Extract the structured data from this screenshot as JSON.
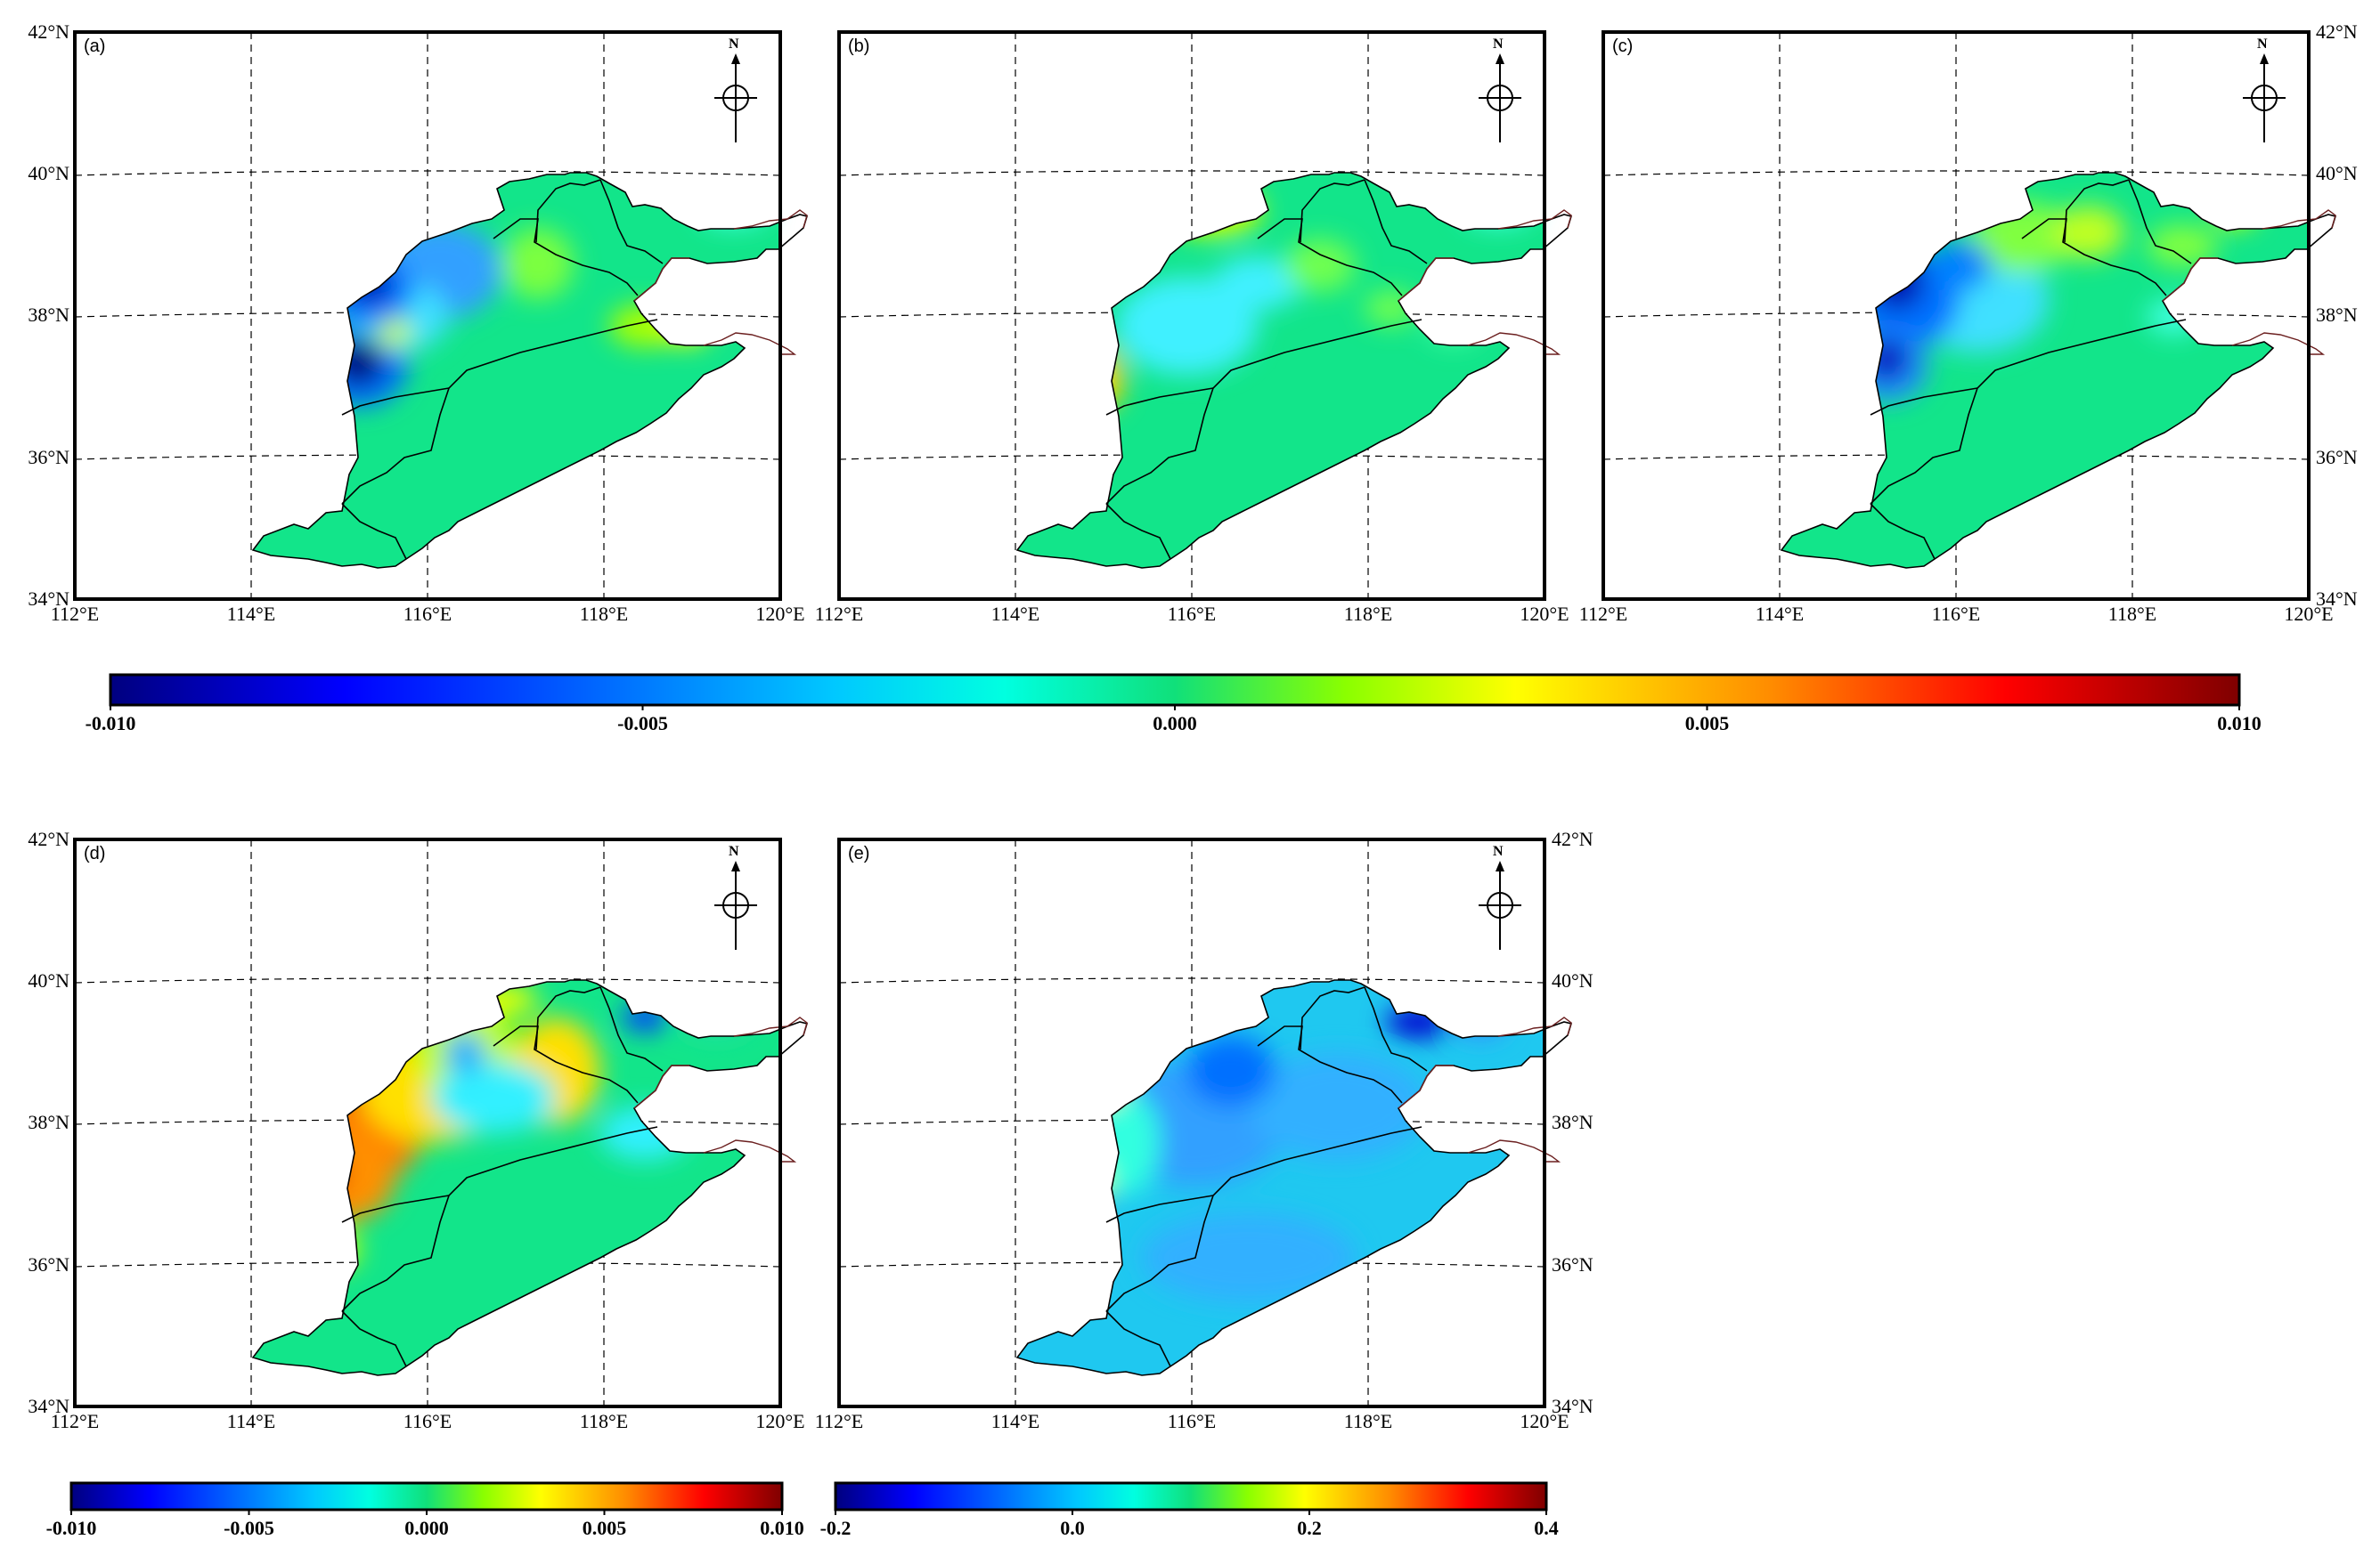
{
  "axes": {
    "x_ticks": [
      "112°E",
      "114°E",
      "116°E",
      "118°E",
      "120°E"
    ],
    "y_ticks": [
      "34°N",
      "36°N",
      "38°N",
      "40°N",
      "42°N"
    ]
  },
  "north_label": "N",
  "panels": [
    {
      "label": "(a)",
      "style": "a"
    },
    {
      "label": "(b)",
      "style": "b"
    },
    {
      "label": "(c)",
      "style": "c"
    },
    {
      "label": "(d)",
      "style": "d"
    },
    {
      "label": "(e)",
      "style": "e"
    }
  ],
  "colorbars": [
    {
      "id": "top",
      "ticks": [
        "-0.010",
        "-0.005",
        "0.000",
        "0.005",
        "0.010"
      ]
    },
    {
      "id": "bottom-left",
      "ticks": [
        "-0.010",
        "-0.005",
        "0.000",
        "0.005",
        "0.010"
      ]
    },
    {
      "id": "bottom-right",
      "ticks": [
        "-0.2",
        "0.0",
        "0.2",
        "0.4"
      ]
    }
  ],
  "colors": {
    "jet": [
      "#00007f",
      "#0000ff",
      "#007fff",
      "#00ffff",
      "#00e08a",
      "#7fff00",
      "#ffff00",
      "#ff7f00",
      "#ff0000",
      "#7f0000"
    ],
    "frame": "#000000"
  }
}
